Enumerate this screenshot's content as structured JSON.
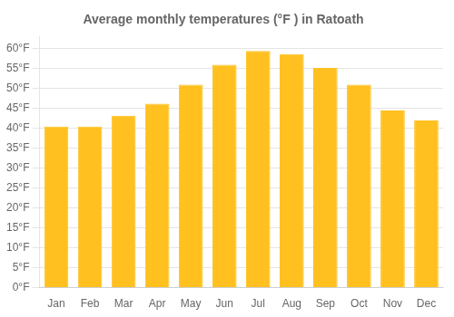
{
  "chart_data": {
    "type": "bar",
    "title": "Average monthly temperatures (°F ) in Ratoath",
    "categories": [
      "Jan",
      "Feb",
      "Mar",
      "Apr",
      "May",
      "Jun",
      "Jul",
      "Aug",
      "Sep",
      "Oct",
      "Nov",
      "Dec"
    ],
    "values": [
      40.5,
      40.5,
      43.2,
      46.2,
      51.0,
      56.0,
      59.5,
      58.7,
      55.2,
      51.0,
      44.5,
      42.0
    ],
    "color": "#FFC020",
    "ylim": [
      0,
      63
    ],
    "yticks": [
      {
        "value": 0,
        "label": "0°F"
      },
      {
        "value": 5,
        "label": "5°F"
      },
      {
        "value": 10,
        "label": "10°F"
      },
      {
        "value": 15,
        "label": "15°F"
      },
      {
        "value": 20,
        "label": "20°F"
      },
      {
        "value": 25,
        "label": "25°F"
      },
      {
        "value": 30,
        "label": "30°F"
      },
      {
        "value": 35,
        "label": "35°F"
      },
      {
        "value": 40,
        "label": "40°F"
      },
      {
        "value": 45,
        "label": "45°F"
      },
      {
        "value": 50,
        "label": "50°F"
      },
      {
        "value": 55,
        "label": "55°F"
      },
      {
        "value": 60,
        "label": "60°F"
      }
    ],
    "grid": true
  }
}
